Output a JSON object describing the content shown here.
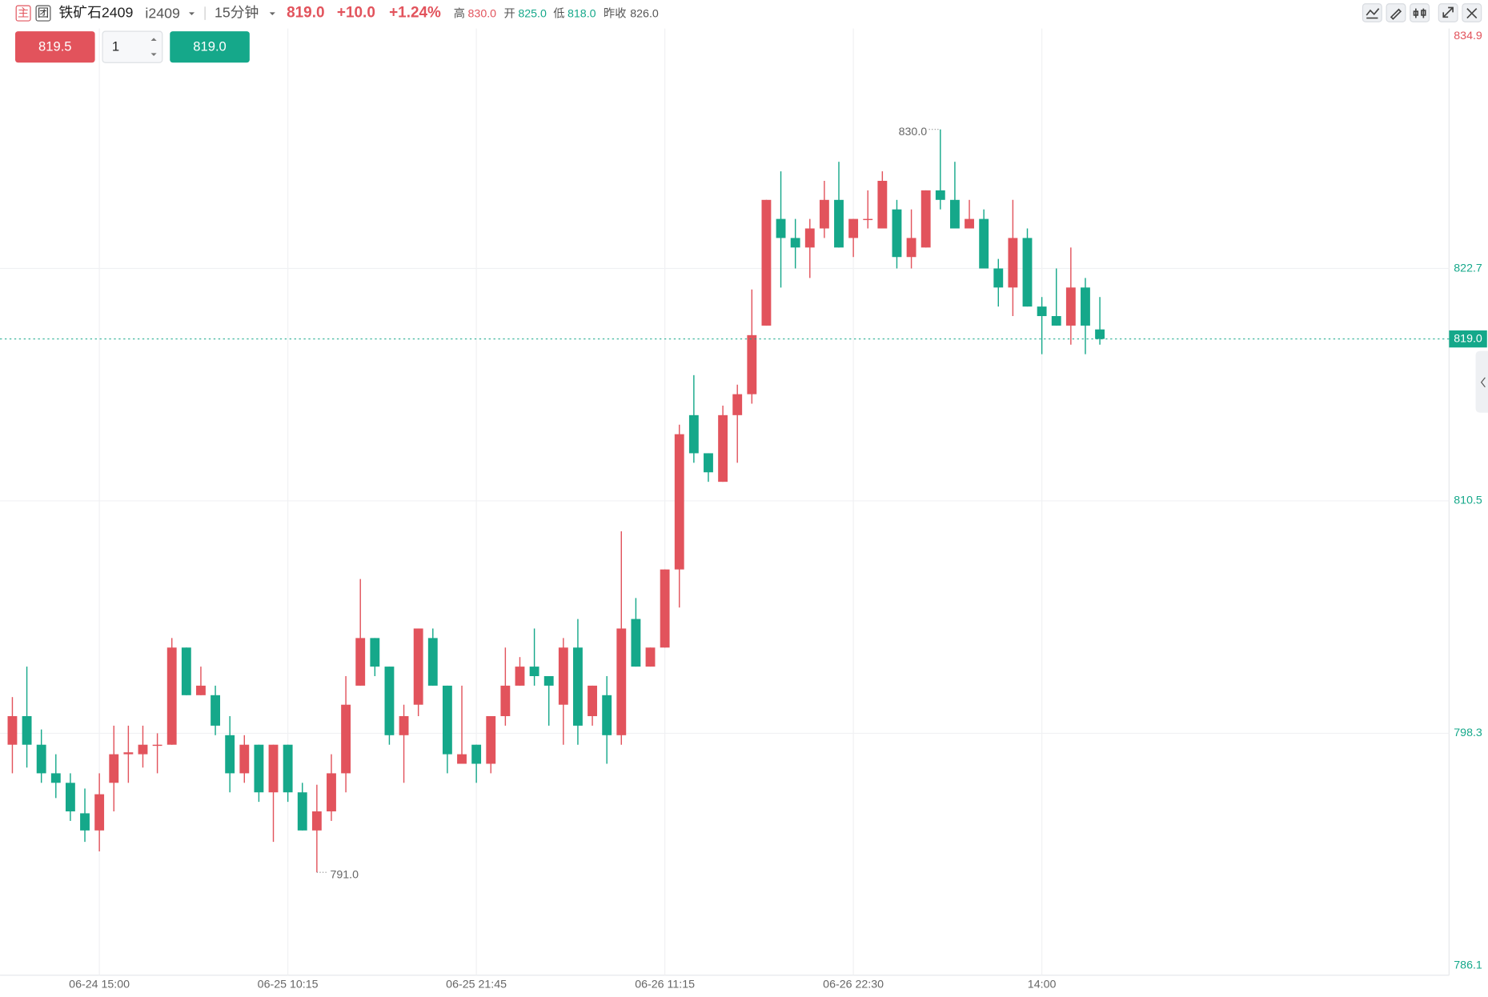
{
  "header": {
    "tag_main": "主",
    "tag_group": "团",
    "name": "铁矿石2409",
    "code": "i2409",
    "period": "15分钟",
    "price": "819.0",
    "change": "+10.0",
    "change_pct": "+1.24%",
    "high_label": "高",
    "high": "830.0",
    "open_label": "开",
    "open": "825.0",
    "low_label": "低",
    "low": "818.0",
    "prev_label": "昨收",
    "prev_close": "826.0"
  },
  "order": {
    "sell": "819.5",
    "qty": "1",
    "buy": "819.0"
  },
  "chart_data": {
    "type": "candlestick",
    "categories": [
      null,
      null,
      null,
      null,
      null,
      null,
      "06-24 15:00",
      null,
      null,
      null,
      null,
      null,
      null,
      null,
      null,
      null,
      null,
      null,
      null,
      "06-25 10:15",
      null,
      null,
      null,
      null,
      null,
      null,
      null,
      null,
      null,
      null,
      null,
      null,
      "06-25 21:45",
      null,
      null,
      null,
      null,
      null,
      null,
      null,
      null,
      null,
      null,
      null,
      null,
      "06-26 11:15",
      null,
      null,
      null,
      null,
      null,
      null,
      null,
      null,
      null,
      null,
      null,
      null,
      "06-26 22:30",
      null,
      null,
      null,
      null,
      null,
      null,
      null,
      null,
      null,
      null,
      null,
      null,
      "14:00",
      null,
      null,
      null,
      null
    ],
    "open": [
      797.7,
      799.2,
      797.7,
      796.2,
      795.7,
      794.1,
      793.2,
      795.7,
      797.2,
      797.2,
      797.7,
      797.7,
      802.8,
      800.3,
      800.3,
      798.2,
      796.2,
      797.7,
      795.2,
      797.7,
      795.2,
      793.2,
      794.2,
      796.2,
      800.8,
      803.3,
      801.8,
      798.2,
      799.8,
      803.3,
      800.8,
      796.7,
      797.7,
      796.7,
      799.2,
      800.8,
      801.8,
      801.3,
      799.8,
      802.8,
      799.2,
      800.3,
      798.2,
      804.3,
      801.8,
      802.8,
      806.9,
      815.0,
      813.0,
      811.5,
      815.0,
      816.1,
      819.7,
      825.3,
      824.3,
      823.8,
      824.8,
      826.3,
      824.3,
      825.3,
      824.8,
      825.8,
      823.3,
      823.8,
      826.8,
      826.3,
      824.8,
      825.3,
      822.7,
      821.7,
      824.3,
      820.7,
      820.2,
      819.7,
      821.7,
      819.5
    ],
    "high": [
      800.2,
      801.8,
      798.5,
      797.2,
      796.2,
      795.4,
      796.2,
      798.7,
      798.7,
      798.7,
      798.3,
      803.3,
      802.8,
      801.8,
      800.8,
      799.2,
      798.2,
      797.7,
      797.7,
      797.7,
      795.7,
      795.6,
      797.2,
      801.3,
      806.4,
      803.3,
      801.8,
      799.8,
      803.8,
      803.8,
      800.8,
      800.8,
      797.7,
      799.2,
      802.8,
      802.3,
      803.8,
      801.3,
      803.3,
      804.3,
      800.8,
      801.3,
      808.9,
      805.4,
      802.8,
      806.9,
      814.5,
      817.1,
      813.0,
      815.5,
      816.6,
      821.6,
      826.3,
      827.8,
      825.3,
      825.3,
      827.3,
      828.3,
      825.3,
      826.8,
      827.8,
      826.3,
      825.8,
      826.8,
      830.0,
      828.3,
      826.3,
      825.8,
      823.2,
      826.3,
      824.8,
      821.2,
      822.7,
      823.8,
      822.2,
      821.2
    ],
    "low": [
      796.2,
      796.5,
      795.7,
      794.9,
      793.7,
      792.6,
      792.1,
      794.2,
      795.7,
      796.5,
      796.2,
      797.7,
      800.3,
      800.3,
      798.2,
      795.2,
      795.7,
      794.7,
      792.6,
      794.7,
      793.2,
      791.0,
      793.7,
      795.2,
      800.8,
      801.3,
      797.7,
      795.7,
      799.2,
      800.8,
      796.2,
      796.7,
      795.7,
      796.2,
      798.7,
      800.8,
      800.8,
      798.7,
      797.7,
      797.7,
      798.7,
      796.7,
      797.7,
      801.8,
      801.8,
      802.8,
      804.9,
      812.5,
      811.5,
      811.5,
      812.5,
      815.6,
      819.7,
      821.7,
      822.7,
      822.2,
      824.3,
      823.8,
      823.3,
      824.8,
      824.8,
      822.7,
      822.7,
      823.8,
      825.8,
      824.8,
      824.8,
      822.7,
      820.7,
      820.2,
      820.7,
      818.2,
      819.7,
      818.7,
      818.2,
      818.7
    ],
    "close": [
      799.2,
      797.7,
      796.2,
      795.7,
      794.2,
      793.2,
      795.1,
      797.2,
      797.3,
      797.7,
      797.7,
      802.8,
      800.3,
      800.8,
      798.7,
      796.2,
      797.7,
      795.2,
      797.7,
      795.2,
      793.2,
      794.2,
      796.2,
      799.8,
      803.3,
      801.8,
      798.2,
      799.2,
      803.8,
      800.8,
      797.2,
      797.2,
      796.7,
      799.2,
      800.8,
      801.8,
      801.3,
      800.8,
      802.8,
      798.7,
      800.8,
      798.2,
      803.8,
      801.8,
      802.8,
      806.9,
      814.0,
      813.0,
      812.0,
      815.0,
      816.1,
      819.2,
      826.3,
      824.3,
      823.8,
      824.8,
      826.3,
      823.8,
      825.3,
      825.3,
      827.3,
      823.3,
      824.3,
      826.8,
      826.3,
      824.8,
      825.3,
      822.7,
      821.7,
      824.3,
      820.7,
      820.2,
      819.7,
      821.7,
      819.7,
      819.0
    ],
    "ylim": [
      786.1,
      834.9
    ],
    "yticks": [
      786.1,
      798.3,
      810.5,
      822.7,
      834.9
    ],
    "grid": true,
    "up_color": "#e2535c",
    "down_color": "#15a88a",
    "last_price": {
      "value": 819,
      "label": "819.0"
    },
    "max_label": {
      "value": 830,
      "label": "830.0"
    },
    "min_label": {
      "value": 791,
      "label": "791.0"
    }
  }
}
